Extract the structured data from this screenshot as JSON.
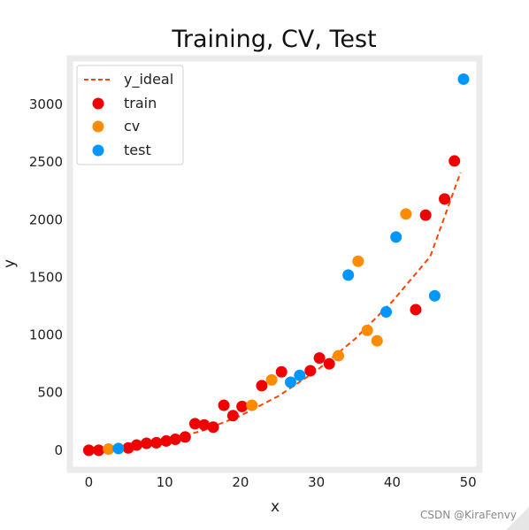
{
  "watermark": "CSDN @KiraFenvy",
  "chart_data": {
    "type": "scatter",
    "title": "Training, CV, Test",
    "xlabel": "x",
    "ylabel": "y",
    "xlim": [
      -2.5,
      51.5
    ],
    "ylim": [
      -170,
      3400
    ],
    "xticks": [
      0,
      10,
      20,
      30,
      40,
      50
    ],
    "yticks": [
      0,
      500,
      1000,
      1500,
      2000,
      2500,
      3000
    ],
    "grid": false,
    "legend_position": "top-left",
    "line": {
      "name": "y_ideal",
      "color": "#ff4500",
      "style": "dashed",
      "points": [
        [
          0,
          0
        ],
        [
          5,
          24
        ],
        [
          10,
          80
        ],
        [
          15,
          170
        ],
        [
          20,
          300
        ],
        [
          25,
          470
        ],
        [
          30,
          690
        ],
        [
          35,
          960
        ],
        [
          40,
          1290
        ],
        [
          45,
          1680
        ],
        [
          49,
          2410
        ]
      ]
    },
    "series": [
      {
        "name": "train",
        "color": "#f00000",
        "points": [
          [
            0,
            0
          ],
          [
            1.3,
            0
          ],
          [
            5.2,
            20
          ],
          [
            6.3,
            45
          ],
          [
            7.6,
            60
          ],
          [
            8.9,
            65
          ],
          [
            10.2,
            80
          ],
          [
            11.4,
            95
          ],
          [
            12.7,
            115
          ],
          [
            14,
            230
          ],
          [
            15.2,
            220
          ],
          [
            16.4,
            200
          ],
          [
            17.8,
            390
          ],
          [
            19,
            300
          ],
          [
            20.2,
            380
          ],
          [
            22.8,
            560
          ],
          [
            25.4,
            680
          ],
          [
            29.2,
            690
          ],
          [
            30.4,
            800
          ],
          [
            31.7,
            750
          ],
          [
            43.1,
            1220
          ],
          [
            44.4,
            2040
          ],
          [
            46.9,
            2180
          ],
          [
            48.2,
            2510
          ]
        ]
      },
      {
        "name": "cv",
        "color": "#ff8c00",
        "points": [
          [
            2.6,
            10
          ],
          [
            21.5,
            390
          ],
          [
            24.1,
            610
          ],
          [
            32.9,
            820
          ],
          [
            35.5,
            1640
          ],
          [
            36.7,
            1040
          ],
          [
            38,
            950
          ],
          [
            41.8,
            2050
          ]
        ]
      },
      {
        "name": "test",
        "color": "#0096ff",
        "points": [
          [
            3.9,
            15
          ],
          [
            26.6,
            590
          ],
          [
            27.8,
            650
          ],
          [
            34.2,
            1520
          ],
          [
            39.2,
            1200
          ],
          [
            40.5,
            1850
          ],
          [
            45.6,
            1340
          ],
          [
            49.4,
            3220
          ]
        ]
      }
    ]
  }
}
